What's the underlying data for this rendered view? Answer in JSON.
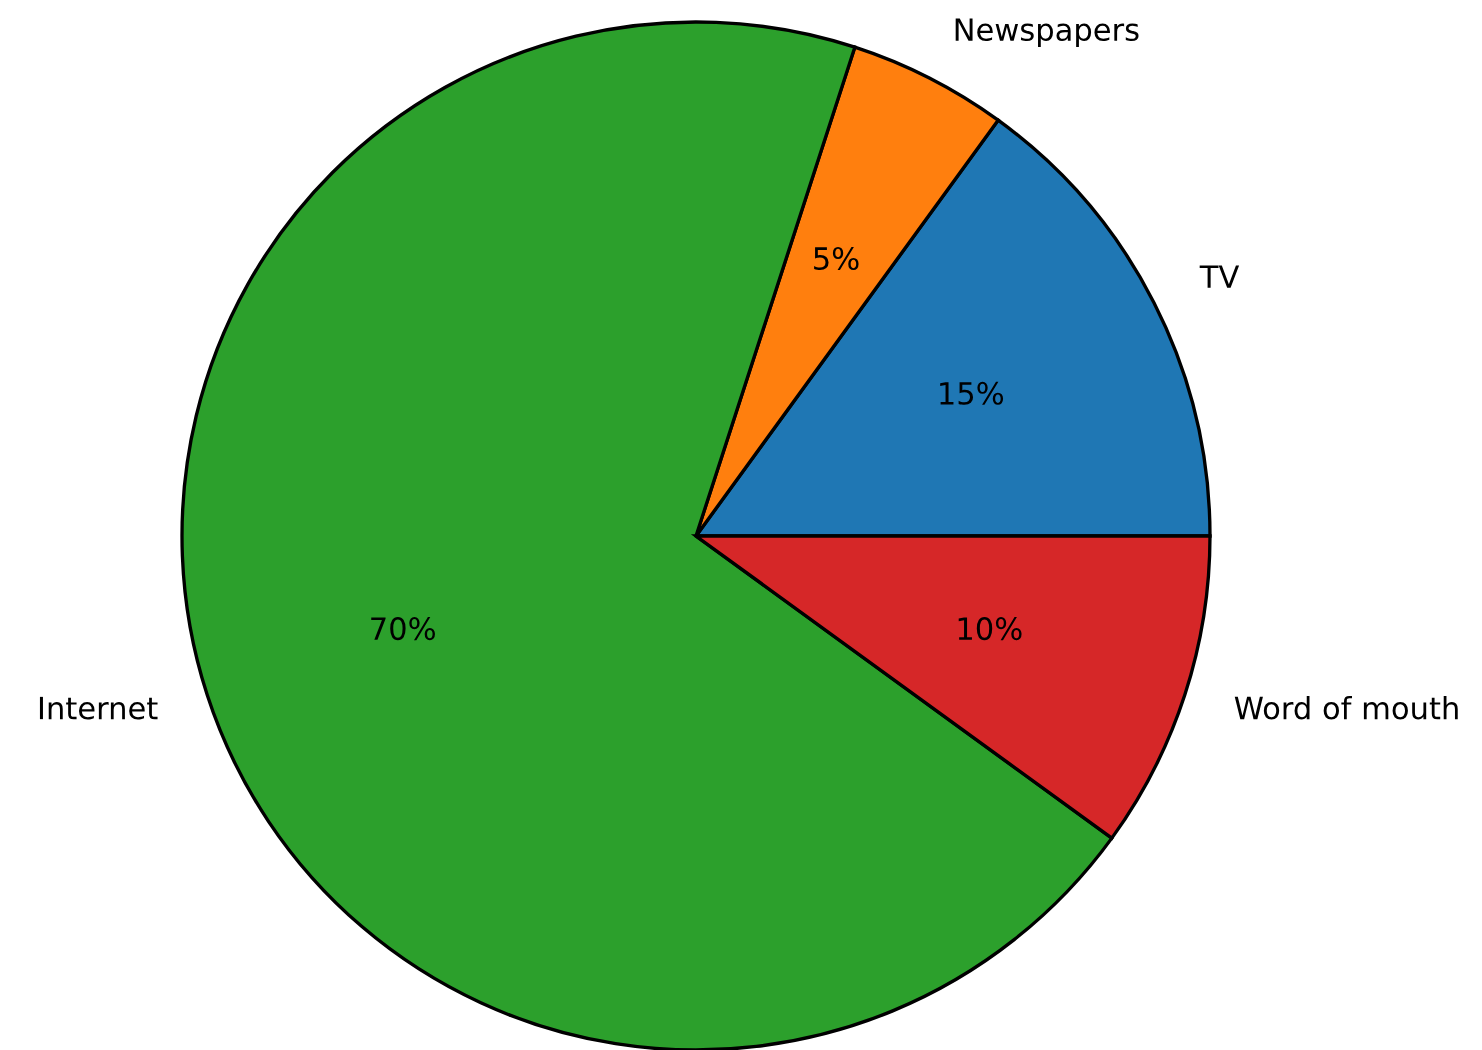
{
  "chart_data": {
    "type": "pie",
    "categories": [
      "TV",
      "Newspapers",
      "Internet",
      "Word of mouth"
    ],
    "values": [
      15,
      5,
      70,
      10
    ],
    "value_labels": [
      "15%",
      "5%",
      "70%",
      "10%"
    ],
    "colors": [
      "#1f77b4",
      "#ff7f0e",
      "#2ca02c",
      "#d62728"
    ],
    "legend": false
  }
}
